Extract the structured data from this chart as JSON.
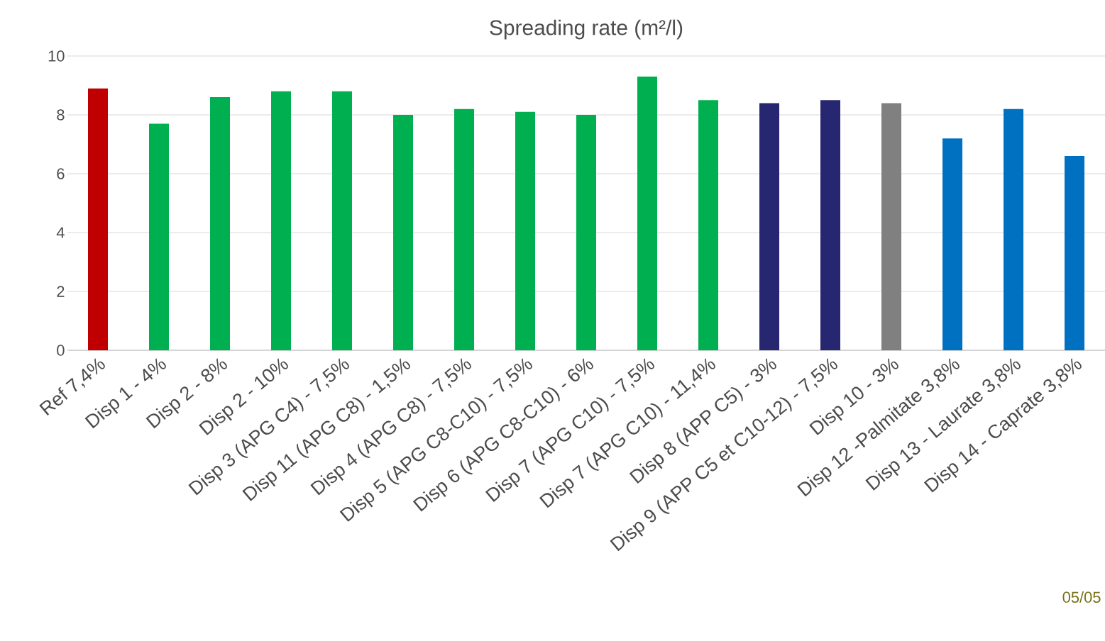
{
  "chart_data": {
    "type": "bar",
    "title": "Spreading rate (m²/l)",
    "categories": [
      "Ref 7,4%",
      "Disp 1 - 4%",
      "Disp 2 - 8%",
      "Disp 2 - 10%",
      "Disp 3 (APG C4) - 7,5%",
      "Disp 11 (APG C8) - 1,5%",
      "Disp 4 (APG C8) - 7,5%",
      "Disp 5 (APG C8-C10) - 7,5%",
      "Disp 6 (APG C8-C10) - 6%",
      "Disp 7 (APG C10) -  7,5%",
      "Disp 7 (APG C10) -  11,4%",
      "Disp 8 (APP C5) - 3%",
      "Disp 9 (APP C5 et C10-12) - 7,5%",
      "Disp 10  - 3%",
      "Disp 12 -Palmitate 3,8%",
      "Disp 13 - Laurate 3,8%",
      "Disp 14 - Caprate 3,8%"
    ],
    "values": [
      8.9,
      7.7,
      8.6,
      8.8,
      8.8,
      8.0,
      8.2,
      8.1,
      8.0,
      9.3,
      8.5,
      8.4,
      8.5,
      8.4,
      7.2,
      8.2,
      6.6
    ],
    "colors": [
      "#c00000",
      "#00b050",
      "#00b050",
      "#00b050",
      "#00b050",
      "#00b050",
      "#00b050",
      "#00b050",
      "#00b050",
      "#00b050",
      "#00b050",
      "#262671",
      "#262671",
      "#808080",
      "#0070c0",
      "#0070c0",
      "#0070c0"
    ],
    "ylim": [
      0,
      10
    ],
    "yticks": [
      0,
      2,
      4,
      6,
      8,
      10
    ],
    "grid": "y",
    "annotations": [
      "05/05"
    ]
  }
}
